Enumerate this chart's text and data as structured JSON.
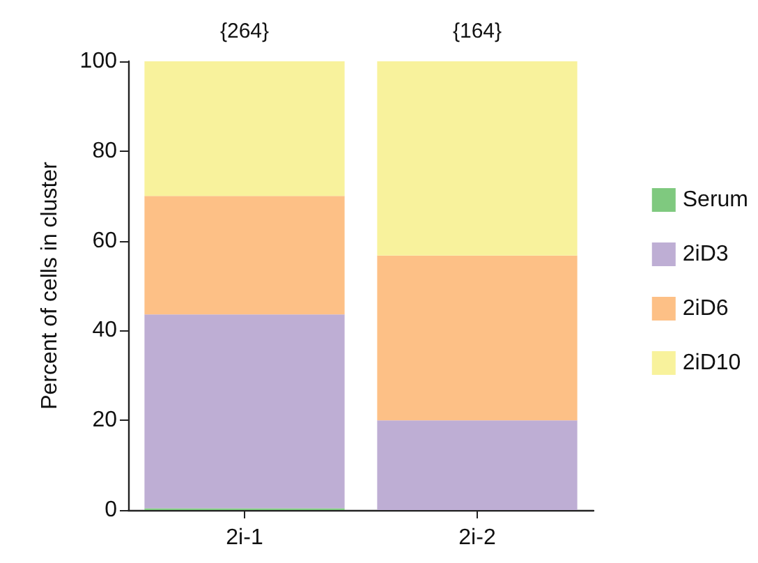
{
  "chart_data": {
    "type": "bar",
    "stacked": true,
    "ylabel": "Percent of cells in cluster",
    "categories": [
      "2i-1",
      "2i-2"
    ],
    "series": [
      {
        "name": "Serum",
        "color": "#7fc97f",
        "values": [
          0.4,
          0
        ]
      },
      {
        "name": "2iD3",
        "color": "#beaed4",
        "values": [
          43.2,
          20.0
        ]
      },
      {
        "name": "2iD6",
        "color": "#fdc086",
        "values": [
          26.4,
          36.7
        ]
      },
      {
        "name": "2iD10",
        "color": "#f8f29c",
        "values": [
          30.0,
          43.3
        ]
      }
    ],
    "annotations": [
      {
        "text": "{264}",
        "x": "2i-1",
        "y": 100
      },
      {
        "text": "{164}",
        "x": "2i-2",
        "y": 100
      }
    ],
    "ylim": [
      0,
      100
    ],
    "yticks": [
      0,
      20,
      40,
      60,
      80,
      100
    ],
    "grid": false,
    "legend": "right"
  }
}
